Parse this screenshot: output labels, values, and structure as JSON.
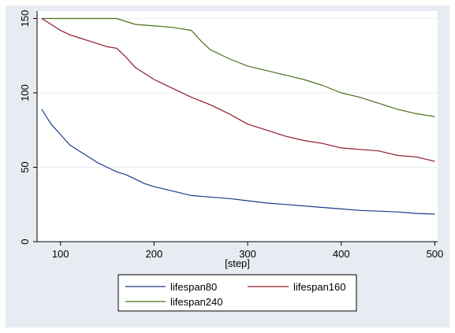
{
  "chart_data": {
    "type": "line",
    "title": "",
    "xlabel": "[step]",
    "ylabel": "",
    "xlim": [
      75,
      503
    ],
    "ylim": [
      0,
      155
    ],
    "x_ticks": [
      100,
      200,
      300,
      400,
      500
    ],
    "y_ticks": [
      0,
      50,
      100,
      150
    ],
    "x_tick_labels": [
      "100",
      "200",
      "300",
      "400",
      "500"
    ],
    "y_tick_labels": [
      "0",
      "50",
      "100",
      "150"
    ],
    "grid": "horizontal",
    "legend_placement": "bottom",
    "series": [
      {
        "name": "lifespan80",
        "color": "#1a3a8c",
        "points": [
          [
            80,
            89
          ],
          [
            90,
            79
          ],
          [
            100,
            72
          ],
          [
            110,
            65
          ],
          [
            120,
            61
          ],
          [
            130,
            57
          ],
          [
            140,
            53
          ],
          [
            150,
            50
          ],
          [
            160,
            47
          ],
          [
            170,
            45
          ],
          [
            180,
            42
          ],
          [
            190,
            39
          ],
          [
            200,
            37
          ],
          [
            220,
            34
          ],
          [
            240,
            31
          ],
          [
            260,
            30
          ],
          [
            280,
            29
          ],
          [
            300,
            27.5
          ],
          [
            320,
            26
          ],
          [
            340,
            25
          ],
          [
            360,
            24
          ],
          [
            380,
            23
          ],
          [
            400,
            22
          ],
          [
            420,
            21
          ],
          [
            440,
            20.5
          ],
          [
            460,
            20
          ],
          [
            480,
            19
          ],
          [
            500,
            18.5
          ]
        ]
      },
      {
        "name": "lifespan160",
        "color": "#8c1a2a",
        "points": [
          [
            80,
            150
          ],
          [
            90,
            146
          ],
          [
            100,
            142
          ],
          [
            110,
            139
          ],
          [
            120,
            137
          ],
          [
            130,
            135
          ],
          [
            140,
            133
          ],
          [
            150,
            131
          ],
          [
            160,
            130
          ],
          [
            170,
            124
          ],
          [
            180,
            117
          ],
          [
            190,
            113
          ],
          [
            200,
            109
          ],
          [
            220,
            103
          ],
          [
            240,
            97
          ],
          [
            260,
            92
          ],
          [
            280,
            86
          ],
          [
            300,
            79
          ],
          [
            320,
            75
          ],
          [
            340,
            71
          ],
          [
            360,
            68
          ],
          [
            380,
            66
          ],
          [
            400,
            63
          ],
          [
            420,
            62
          ],
          [
            440,
            61
          ],
          [
            460,
            58
          ],
          [
            480,
            57
          ],
          [
            500,
            54
          ]
        ]
      },
      {
        "name": "lifespan240",
        "color": "#4a6e1e",
        "points": [
          [
            80,
            150
          ],
          [
            160,
            150
          ],
          [
            180,
            146
          ],
          [
            200,
            145
          ],
          [
            220,
            144
          ],
          [
            240,
            142
          ],
          [
            250,
            135
          ],
          [
            260,
            129
          ],
          [
            280,
            123
          ],
          [
            300,
            118
          ],
          [
            320,
            115
          ],
          [
            340,
            112
          ],
          [
            360,
            109
          ],
          [
            380,
            105
          ],
          [
            400,
            100
          ],
          [
            420,
            97
          ],
          [
            440,
            93
          ],
          [
            460,
            89
          ],
          [
            480,
            86
          ],
          [
            500,
            84
          ]
        ]
      }
    ]
  },
  "colors": {
    "background_outer": "#e7ecf2",
    "plot_background": "#ffffff",
    "grid": "#e7ecf2",
    "axis": "#000000"
  }
}
